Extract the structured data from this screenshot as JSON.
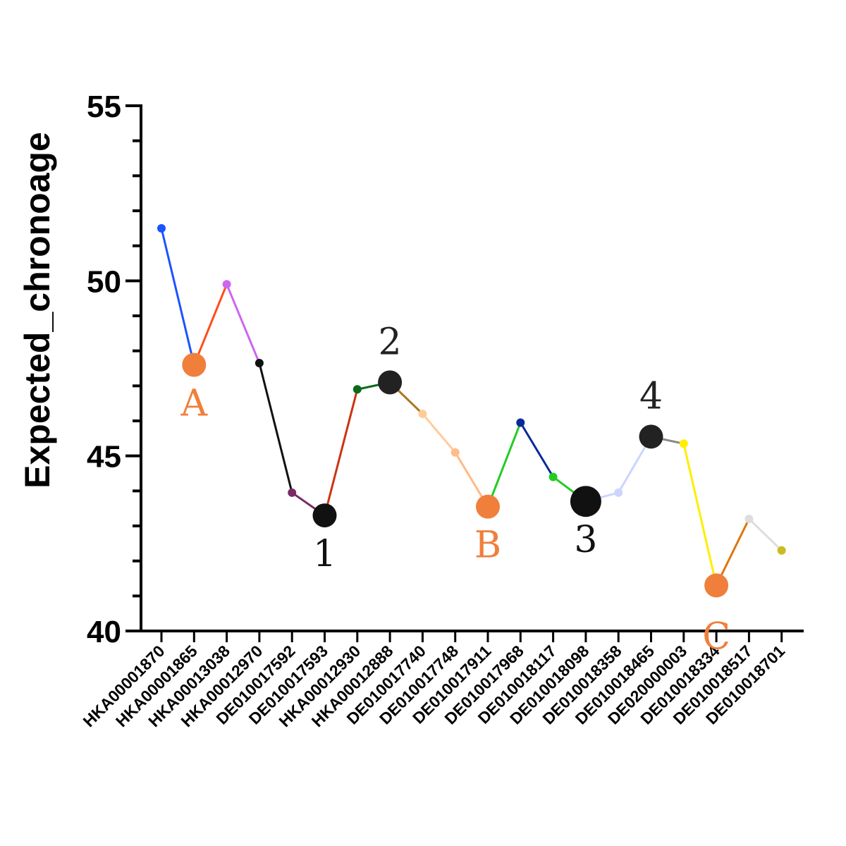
{
  "chart_data": {
    "type": "line",
    "title": "",
    "xlabel": "",
    "ylabel": "Expected_chronoage",
    "ylim": [
      40,
      55
    ],
    "yticks": [
      40,
      45,
      50,
      55
    ],
    "grid": false,
    "legend": "none",
    "categories": [
      "HKA00001870",
      "HKA00001865",
      "HKA00013038",
      "HKA00012970",
      "DE010017592",
      "DE010017593",
      "HKA00012930",
      "HKA00012888",
      "DE010017740",
      "DE010017748",
      "DE010017911",
      "DE010017968",
      "DE010018117",
      "DE010018098",
      "DE010018358",
      "DE010018465",
      "DE020000003",
      "DE010018334",
      "DE010018517",
      "DE010018701"
    ],
    "values": [
      51.5,
      47.6,
      49.9,
      47.65,
      43.95,
      43.3,
      46.9,
      47.1,
      46.2,
      45.1,
      43.55,
      45.95,
      44.4,
      43.7,
      43.95,
      45.55,
      45.35,
      41.3,
      43.2,
      42.3
    ],
    "point_colors": [
      "#1a53ff",
      "#ff4d1a",
      "#cc66ee",
      "#111111",
      "#7a2a66",
      "#cc3311",
      "#0a6a1a",
      "#aa7722",
      "#ffcc99",
      "#ffbb88",
      "#22cc22",
      "#0a2a99",
      "#22cc22",
      "#1a53ff",
      "#ccd4ff",
      "#888888",
      "#ffee00",
      "#dd7711",
      "#dddddd",
      "#ccbb22"
    ],
    "segment_colors": [
      "#1a53ff",
      "#ff4d1a",
      "#cc66ee",
      "#111111",
      "#7a2a66",
      "#cc3311",
      "#0a6a1a",
      "#aa7722",
      "#ffcc99",
      "#ffbb88",
      "#22cc22",
      "#0a2a99",
      "#22cc22",
      "#ccd4ff",
      "#ccd4ff",
      "#888888",
      "#ffee00",
      "#dd7711",
      "#dddddd"
    ],
    "annotations": [
      {
        "label": "A",
        "index": 1,
        "color": "#f07f3c",
        "position": "below"
      },
      {
        "label": "1",
        "index": 5,
        "color": "#111111",
        "position": "below"
      },
      {
        "label": "2",
        "index": 7,
        "color": "#222222",
        "position": "above"
      },
      {
        "label": "B",
        "index": 10,
        "color": "#f07f3c",
        "position": "below"
      },
      {
        "label": "3",
        "index": 13,
        "color": "#111111",
        "position": "below"
      },
      {
        "label": "4",
        "index": 15,
        "color": "#222222",
        "position": "above"
      },
      {
        "label": "C",
        "index": 17,
        "color": "#f07f3c",
        "position": "below"
      }
    ]
  }
}
